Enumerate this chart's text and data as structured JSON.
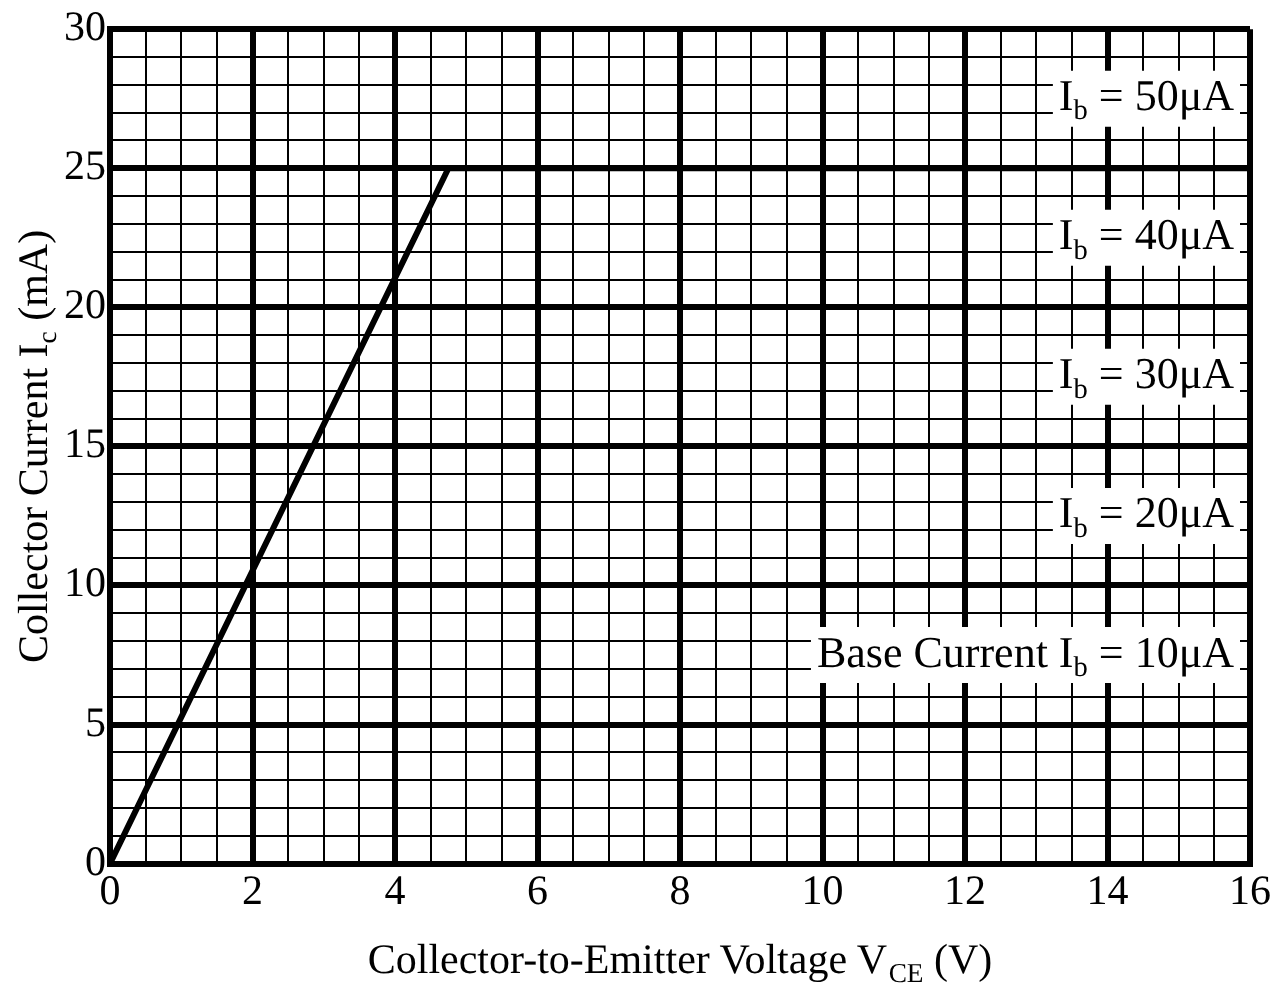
{
  "chart_data": {
    "type": "line",
    "xlabel": "Collector-to-Emitter Voltage V$_{CE}$ (V)",
    "ylabel": "Collector Current I$_{c}$ (mA)",
    "x": [
      0,
      4.75,
      16
    ],
    "series": [
      {
        "color": "#000000",
        "values": [
          0,
          25,
          25
        ]
      }
    ],
    "xlim": [
      0,
      16
    ],
    "ylim": [
      0,
      30
    ],
    "xticks": [
      0,
      {
        "value": 0.5,
        "label": null
      },
      {
        "value": 1,
        "label": null
      },
      {
        "value": 1.5,
        "label": null
      },
      2,
      {
        "value": 2.5,
        "label": null
      },
      {
        "value": 3,
        "label": null
      },
      {
        "value": 3.5,
        "label": null
      },
      4,
      {
        "value": 4.5,
        "label": null
      },
      {
        "value": 5,
        "label": null
      },
      {
        "value": 5.5,
        "label": null
      },
      6,
      {
        "value": 6.5,
        "label": null
      },
      {
        "value": 7,
        "label": null
      },
      {
        "value": 7.5,
        "label": null
      },
      8,
      {
        "value": 8.5,
        "label": null
      },
      {
        "value": 9,
        "label": null
      },
      {
        "value": 9.5,
        "label": null
      },
      10,
      {
        "value": 10.5,
        "label": null
      },
      {
        "value": 11,
        "label": null
      },
      {
        "value": 11.5,
        "label": null
      },
      12,
      {
        "value": 12.5,
        "label": null
      },
      {
        "value": 13,
        "label": null
      },
      {
        "value": 13.5,
        "label": null
      },
      14,
      {
        "value": 14.5,
        "label": null
      },
      {
        "value": 15,
        "label": null
      },
      {
        "value": 15.5,
        "label": null
      },
      16
    ],
    "yticks": [
      0,
      {
        "value": 1,
        "label": null
      },
      {
        "value": 2,
        "label": null
      },
      {
        "value": 3,
        "label": null
      },
      {
        "value": 4,
        "label": null
      },
      5,
      {
        "value": 6,
        "label": null
      },
      {
        "value": 7,
        "label": null
      },
      {
        "value": 8,
        "label": null
      },
      {
        "value": 9,
        "label": null
      },
      10,
      {
        "value": 11,
        "label": null
      },
      {
        "value": 12,
        "label": null
      },
      {
        "value": 13,
        "label": null
      },
      {
        "value": 14,
        "label": null
      },
      15,
      {
        "value": 16,
        "label": null
      },
      {
        "value": 17,
        "label": null
      },
      {
        "value": 18,
        "label": null
      },
      {
        "value": 19,
        "label": null
      },
      20,
      {
        "value": 21,
        "label": null
      },
      {
        "value": 22,
        "label": null
      },
      {
        "value": 23,
        "label": null
      },
      {
        "value": 24,
        "label": null
      },
      25,
      {
        "value": 26,
        "label": null
      },
      {
        "value": 27,
        "label": null
      },
      {
        "value": 28,
        "label": null
      },
      {
        "value": 29,
        "label": null
      },
      30
    ],
    "grid": true,
    "marker": "none",
    "line_style": "solid",
    "annotations": [
      "I$_{b}$ = 50μA",
      "I$_{b}$ = 40μA",
      "I$_{b}$ = 30μA",
      "I$_{b}$ = 20μA",
      "Base Current I$_{b}$ = 10μA"
    ]
  }
}
